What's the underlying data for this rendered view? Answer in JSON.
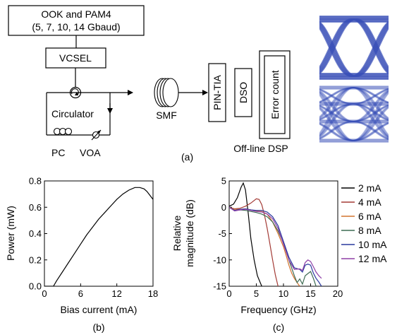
{
  "setup": {
    "source_line1": "OOK and PAM4",
    "source_line2": "(5, 7, 10, 14 Gbaud)",
    "vcsel": "VCSEL",
    "circulator": "Circulator",
    "smf": "SMF",
    "pc": "PC",
    "voa": "VOA",
    "pin_tia": "PIN-TIA",
    "dso": "DSO",
    "error_count": "Error count",
    "offline_dsp": "Off-line DSP",
    "label": "(a)",
    "eye_color": "#3a4fb8"
  },
  "chart_data": [
    {
      "type": "line",
      "panel_label": "(b)",
      "xlabel": "Bias current (mA)",
      "ylabel": "Power (mW)",
      "xlim": [
        0,
        18
      ],
      "ylim": [
        0,
        0.8
      ],
      "xticks": [
        "0",
        "6",
        "12",
        "18"
      ],
      "yticks": [
        "0.0",
        "0.2",
        "0.4",
        "0.6",
        "0.8"
      ],
      "grid": false,
      "series": [
        {
          "color": "#000000",
          "x": [
            0.0,
            1.5,
            2,
            3,
            4,
            5,
            6,
            7,
            8,
            9,
            10,
            11,
            12,
            13,
            14,
            15,
            15.8,
            16.5,
            17,
            17.5,
            18
          ],
          "y": [
            0.0,
            0.0,
            0.04,
            0.11,
            0.18,
            0.25,
            0.32,
            0.39,
            0.45,
            0.51,
            0.56,
            0.61,
            0.66,
            0.7,
            0.73,
            0.75,
            0.75,
            0.74,
            0.72,
            0.69,
            0.66
          ]
        }
      ]
    },
    {
      "type": "line",
      "panel_label": "(c)",
      "xlabel": "Frequency (GHz)",
      "ylabel_line1": "Relative",
      "ylabel_line2": "magnitude (dB)",
      "xlim": [
        0,
        20
      ],
      "ylim": [
        -15,
        5
      ],
      "xticks": [
        "0",
        "5",
        "10",
        "15",
        "20"
      ],
      "yticks": [
        "5",
        "0",
        "-5",
        "-10",
        "-15"
      ],
      "grid": false,
      "legend_position": "right",
      "series": [
        {
          "name": "2 mA",
          "color": "#000000",
          "x": [
            0,
            0.8,
            1.5,
            2.2,
            2.6,
            3.0,
            3.5,
            4.0,
            4.6,
            5.2,
            6.0
          ],
          "y": [
            0.2,
            0.6,
            1.8,
            3.8,
            4.6,
            3.3,
            -1.0,
            -6.0,
            -10.0,
            -13.0,
            -15.0
          ]
        },
        {
          "name": "4 mA",
          "color": "#a33a35",
          "x": [
            0,
            1,
            2,
            3,
            4,
            5,
            5.5,
            6.0,
            6.5,
            7.0,
            7.5,
            8.0,
            8.5,
            9.0
          ],
          "y": [
            0.0,
            -0.3,
            -0.2,
            0.2,
            0.8,
            1.6,
            1.5,
            0.5,
            -1.5,
            -4.0,
            -7.0,
            -10.0,
            -12.8,
            -15.0
          ]
        },
        {
          "name": "6 mA",
          "color": "#d2732e",
          "x": [
            0,
            1,
            2,
            3,
            4,
            5,
            6,
            7,
            8,
            9,
            10,
            10.5,
            11,
            11.5,
            12,
            12.5,
            13
          ],
          "y": [
            0.0,
            -0.4,
            -0.4,
            -0.3,
            -0.5,
            -0.7,
            -0.8,
            -1.3,
            -2.8,
            -5.0,
            -7.5,
            -9.2,
            -11.0,
            -12.5,
            -13.5,
            -14.3,
            -15.0
          ]
        },
        {
          "name": "8 mA",
          "color": "#3d6b52",
          "x": [
            0,
            1,
            2,
            3,
            4,
            5,
            6,
            7,
            8,
            9,
            10,
            11,
            12,
            12.5,
            13,
            13.5,
            14,
            14.5,
            15,
            15.5,
            16
          ],
          "y": [
            0.0,
            -0.6,
            -0.5,
            -0.6,
            -0.8,
            -1.0,
            -1.3,
            -1.8,
            -2.8,
            -4.5,
            -6.8,
            -10.0,
            -13.0,
            -14.3,
            -13.6,
            -14.6,
            -13.0,
            -12.6,
            -12.2,
            -13.5,
            -15.0
          ]
        },
        {
          "name": "10 mA",
          "color": "#2a3a9e",
          "x": [
            0,
            1,
            2,
            3,
            4,
            5,
            6,
            7,
            8,
            9,
            10,
            11,
            12,
            13,
            13.5,
            14,
            14.5,
            15,
            15.5,
            16,
            16.5,
            17
          ],
          "y": [
            0.0,
            -0.6,
            -0.4,
            -0.3,
            -0.5,
            -0.6,
            -0.6,
            -0.9,
            -1.8,
            -3.5,
            -6.5,
            -9.5,
            -11.5,
            -11.8,
            -12.3,
            -11.0,
            -10.8,
            -11.0,
            -12.5,
            -13.5,
            -14.2,
            -15.0
          ]
        },
        {
          "name": "12 mA",
          "color": "#8e3fa6",
          "x": [
            0,
            1,
            2,
            3,
            4,
            5,
            6,
            7,
            8,
            9,
            10,
            11,
            12,
            13,
            13.5,
            14,
            14.5,
            15,
            15.5,
            16,
            16.5,
            17
          ],
          "y": [
            0.0,
            -0.7,
            -0.5,
            -0.4,
            -0.6,
            -0.8,
            -0.9,
            -1.3,
            -2.2,
            -4.0,
            -7.0,
            -10.0,
            -11.8,
            -11.7,
            -12.0,
            -10.5,
            -10.0,
            -10.3,
            -11.3,
            -12.3,
            -13.0,
            -13.5
          ]
        }
      ]
    }
  ]
}
